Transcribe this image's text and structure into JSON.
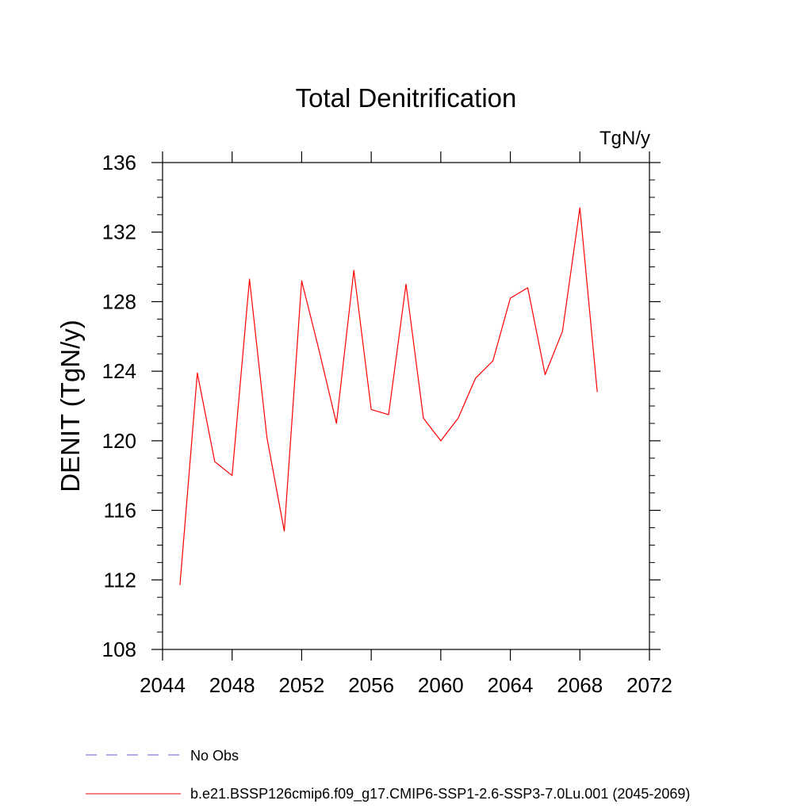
{
  "chart_data": {
    "type": "line",
    "title": "Total Denitrification",
    "units": "TgN/y",
    "ylabel": "DENIT  (TgN/y)",
    "xlabel": "",
    "xlim": [
      2044,
      2072
    ],
    "ylim": [
      108,
      136
    ],
    "xticks": [
      2044,
      2048,
      2052,
      2056,
      2060,
      2064,
      2068,
      2072
    ],
    "yticks": [
      108,
      112,
      116,
      120,
      124,
      128,
      132,
      136
    ],
    "grid": false,
    "legend_placement": "bottom",
    "series": [
      {
        "name": "b.e21.BSSP126cmip6.f09_g17.CMIP6-SSP1-2.6-SSP3-7.0Lu.001 (2045-2069)",
        "color": "#ff0000",
        "dash": "solid",
        "x": [
          2045,
          2046,
          2047,
          2048,
          2049,
          2050,
          2051,
          2052,
          2053,
          2054,
          2055,
          2056,
          2057,
          2058,
          2059,
          2060,
          2061,
          2062,
          2063,
          2064,
          2065,
          2066,
          2067,
          2068,
          2069
        ],
        "y": [
          111.7,
          123.9,
          118.8,
          118.0,
          129.3,
          120.2,
          114.8,
          129.2,
          125.2,
          121.0,
          129.8,
          121.8,
          121.5,
          129.0,
          121.3,
          120.0,
          121.3,
          123.6,
          124.6,
          128.2,
          128.8,
          123.8,
          126.3,
          133.4,
          122.8
        ]
      }
    ],
    "legend": [
      {
        "label": "No Obs",
        "color": "#6a5acd",
        "dash": "dashed"
      },
      {
        "label": "b.e21.BSSP126cmip6.f09_g17.CMIP6-SSP1-2.6-SSP3-7.0Lu.001 (2045-2069)",
        "color": "#ff0000",
        "dash": "solid"
      }
    ]
  }
}
